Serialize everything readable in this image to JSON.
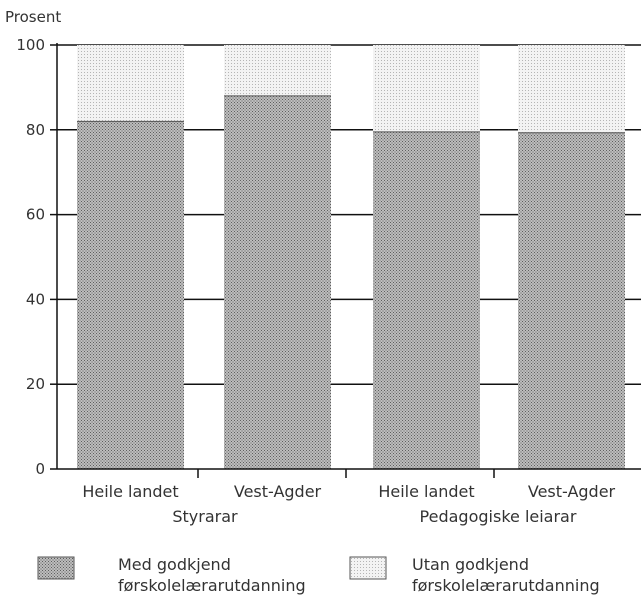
{
  "chart_data": {
    "type": "bar",
    "stacked": true,
    "ylabel": "Prosent",
    "ylim": [
      0,
      100
    ],
    "yticks": [
      "0",
      "20",
      "40",
      "60",
      "80",
      "100"
    ],
    "categories": [
      "Heile landet",
      "Vest-Agder",
      "Heile landet",
      "Vest-Agder"
    ],
    "groups": [
      {
        "label": "Styrarar",
        "categories": [
          0,
          1
        ]
      },
      {
        "label": "Pedagogiske leiarar",
        "categories": [
          2,
          3
        ]
      }
    ],
    "series": [
      {
        "name": "Med godkjend førskolelærarutdanning",
        "values": [
          82,
          88,
          79.5,
          79.3
        ],
        "color": "#9a9a9a"
      },
      {
        "name": "Utan godkjend førskolelærarutdanning",
        "values": [
          18,
          12,
          20.5,
          20.7
        ],
        "color": "#e2e2e2"
      }
    ],
    "grid": true,
    "legend_position": "bottom"
  },
  "legend": {
    "items": [
      {
        "line1": "Med godkjend",
        "line2": "førskolelærarutdanning"
      },
      {
        "line1": "Utan godkjend",
        "line2": "førskolelærarutdanning"
      }
    ]
  }
}
